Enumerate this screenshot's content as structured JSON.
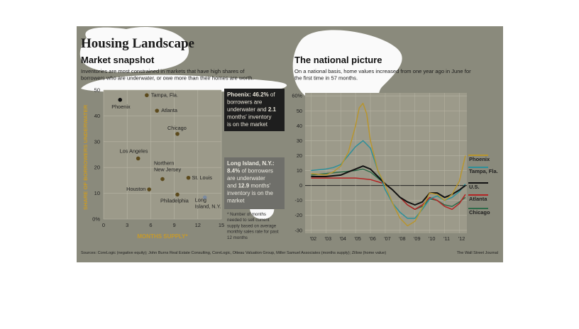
{
  "graphic": {
    "title": "Housing Landscape",
    "source_note": "Sources: CoreLogic (negative equity); John Burns Real Estate Consulting, CoreLogic, Otteau Valuation Group, Miller Samuel Associates (months supply); Zillow (home value)",
    "credit": "The Wall Street Journal"
  },
  "colors": {
    "panel_bg": "#8a8a7c",
    "plot_bg": "#9c9a8a",
    "dot": "#5c4a1c",
    "axis_title": "#c79a2a",
    "phoenix": "#b8952e",
    "tampa": "#2d8f9a",
    "us": "#111111",
    "atlanta": "#b32424",
    "chicago": "#2f6b4a",
    "dark_box": "#1e1e1e",
    "gray_box": "#6f6f6a",
    "blob": "#ffffff"
  },
  "chart_data": [
    {
      "type": "scatter",
      "title": "Market snapshot",
      "subtitle": "Inventories are most constrained in markets that have high shares of borrowers who are underwater, or owe more than their homes are worth.",
      "xlabel": "MONTHS SUPPLY*",
      "ylabel": "SHARE OF BORROWERS UNDERWATER",
      "xlim": [
        0,
        15
      ],
      "ylim": [
        0,
        50
      ],
      "xticks": [
        0,
        3,
        6,
        9,
        12,
        15
      ],
      "yticks": [
        0,
        10,
        20,
        30,
        40,
        50
      ],
      "ytick_labels": [
        "0%",
        "10",
        "20",
        "30",
        "40",
        "50"
      ],
      "grid": true,
      "points": [
        {
          "label": "Phoenix",
          "x": 2.1,
          "y": 46.2
        },
        {
          "label": "Tampa, Fla.",
          "x": 5.5,
          "y": 48
        },
        {
          "label": "Atlanta",
          "x": 6.8,
          "y": 42
        },
        {
          "label": "Chicago",
          "x": 9.4,
          "y": 33
        },
        {
          "label": "Los Angeles",
          "x": 4.4,
          "y": 23.5
        },
        {
          "label": "Northern New Jersey",
          "x": 7.5,
          "y": 15.5
        },
        {
          "label": "St. Louis",
          "x": 10.8,
          "y": 16
        },
        {
          "label": "Houston",
          "x": 5.8,
          "y": 11.5
        },
        {
          "label": "Philadelphia",
          "x": 9.4,
          "y": 9.5
        },
        {
          "label": "Long Island, N.Y.",
          "x": 12.9,
          "y": 8.4
        }
      ],
      "annotations": [
        {
          "title": "Phoenix:",
          "lines": [
            "Phoenix: 46.2% of",
            "borrowers are",
            "underwater and 2.1",
            "months' inventory",
            "is on the market"
          ]
        },
        {
          "title": "Long Island, N.Y.:",
          "lines": [
            "Long Island, N.Y.:",
            "8.4% of borrowers",
            "are underwater",
            "and 12.9 months'",
            "inventory is on the",
            "market"
          ]
        }
      ],
      "footnote": [
        "* Number of months",
        "needed to sell current",
        "supply based on average",
        "monthly sales rate for past",
        "12 months"
      ]
    },
    {
      "type": "line",
      "title": "The national picture",
      "subtitle": "On a national basis, home values increased from one year ago in June for the first time in 57 months.",
      "xticks": [
        "'02",
        "'03",
        "'04",
        "'05",
        "'06",
        "'07",
        "'08",
        "'09",
        "'10",
        "'11",
        "'12"
      ],
      "yticks": [
        -30,
        -20,
        -10,
        0,
        10,
        20,
        30,
        40,
        50,
        60
      ],
      "ytick_labels": [
        "-30",
        "-20",
        "-10",
        "0",
        "10",
        "20",
        "30",
        "40",
        "50",
        "60%"
      ],
      "xlim": [
        2001.6,
        2012.5
      ],
      "ylim": [
        -32,
        62
      ],
      "series": [
        {
          "name": "Phoenix",
          "x": [
            2002,
            2003,
            2003.5,
            2004,
            2004.5,
            2005,
            2005.25,
            2005.5,
            2005.75,
            2006,
            2006.5,
            2007,
            2007.5,
            2008,
            2008.5,
            2009,
            2009.5,
            2010,
            2010.5,
            2011,
            2011.5,
            2012,
            2012.4
          ],
          "values": [
            8,
            7,
            9,
            13,
            22,
            40,
            52,
            55,
            48,
            30,
            10,
            0,
            -12,
            -22,
            -27,
            -24,
            -15,
            -5,
            -6,
            -10,
            -6,
            3,
            20
          ]
        },
        {
          "name": "Tampa, Fla.",
          "x": [
            2002,
            2003,
            2003.5,
            2004,
            2004.5,
            2005,
            2005.5,
            2006,
            2006.5,
            2007,
            2007.5,
            2008,
            2008.5,
            2009,
            2009.5,
            2010,
            2010.5,
            2011,
            2011.5,
            2012,
            2012.4
          ],
          "values": [
            10,
            11,
            12,
            14,
            20,
            26,
            30,
            25,
            10,
            -3,
            -12,
            -18,
            -22,
            -22,
            -16,
            -9,
            -7,
            -10,
            -8,
            -4,
            1
          ]
        },
        {
          "name": "U.S.",
          "x": [
            2002,
            2003,
            2004,
            2004.5,
            2005,
            2005.5,
            2006,
            2006.5,
            2007,
            2007.5,
            2008,
            2008.5,
            2009,
            2009.5,
            2010,
            2010.5,
            2011,
            2011.5,
            2012,
            2012.4
          ],
          "values": [
            6,
            6,
            7,
            9,
            11,
            13,
            11,
            6,
            1,
            -3,
            -8,
            -11,
            -13,
            -11,
            -5,
            -5,
            -8,
            -6,
            -3,
            0
          ]
        },
        {
          "name": "Atlanta",
          "x": [
            2002,
            2003,
            2004,
            2005,
            2006,
            2007,
            2007.5,
            2008,
            2008.5,
            2009,
            2009.5,
            2010,
            2010.5,
            2011,
            2011.5,
            2012,
            2012.4
          ],
          "values": [
            5,
            5,
            5,
            5,
            4,
            1,
            -3,
            -8,
            -13,
            -16,
            -13,
            -8,
            -10,
            -14,
            -16,
            -12,
            -6
          ]
        },
        {
          "name": "Chicago",
          "x": [
            2002,
            2003,
            2004,
            2005,
            2005.5,
            2006,
            2006.5,
            2007,
            2007.5,
            2008,
            2008.5,
            2009,
            2009.5,
            2010,
            2010.5,
            2011,
            2011.5,
            2012,
            2012.4
          ],
          "values": [
            7,
            8,
            9,
            10,
            11,
            9,
            5,
            1,
            -3,
            -8,
            -13,
            -16,
            -14,
            -9,
            -10,
            -13,
            -14,
            -11,
            -8
          ]
        }
      ],
      "legend": "right"
    }
  ]
}
